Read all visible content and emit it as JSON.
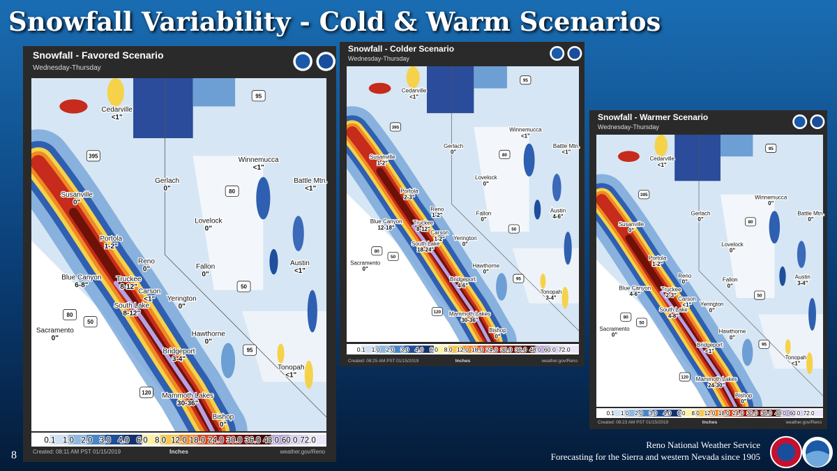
{
  "slide": {
    "title": "Snowfall Variability - Cold & Warm Scenarios",
    "number": "8",
    "footer_line1": "Reno National Weather Service",
    "footer_line2": "Forecasting for the Sierra and western Nevada since 1905"
  },
  "towns": [
    "Cedarville",
    "Susanville",
    "Gerlach",
    "Winnemucca",
    "Battle Mtn.",
    "Lovelock",
    "Portola",
    "Reno",
    "Fallon",
    "Austin",
    "Blue Canyon",
    "Truckee",
    "Carson",
    "South Lake",
    "Yerington",
    "Sacramento",
    "Hawthorne",
    "Bridgeport",
    "Tonopah",
    "Mammoth Lakes",
    "Bishop"
  ],
  "highway_shields": [
    "95",
    "395",
    "80",
    "50",
    "80",
    "50",
    "95",
    "120"
  ],
  "legend_labels": [
    "0.1",
    "1.0",
    "2.0",
    "3.0",
    "4.0",
    "6.0",
    "8.0",
    "12.0",
    "18.0",
    "24.0",
    "30.0",
    "36.0",
    "48.0",
    "60.0",
    "72.0"
  ],
  "legend_unit": "Inches",
  "source": "weather.gov/Reno",
  "panels": [
    {
      "title": "Snowfall - Favored Scenario",
      "subtitle": "Wednesday-Thursday",
      "created": "Created: 08:11 AM PST 01/15/2019",
      "amounts": [
        "<1\"",
        "0\"",
        "0\"",
        "<1\"",
        "<1\"",
        "0\"",
        "1-2\"",
        "0\"",
        "0\"",
        "<1\"",
        "6-8\"",
        "8-12\"",
        "<1\"",
        "8-12\"",
        "0\"",
        "0\"",
        "0\"",
        "3-4\"",
        "<1\"",
        "30-36\"",
        "0\""
      ]
    },
    {
      "title": "Snowfall - Colder Scenario",
      "subtitle": "Wednesday-Thursday",
      "created": "Created: 08:25 AM PST 01/15/2019",
      "amounts": [
        "<1\"",
        "1-2\"",
        "0\"",
        "<1\"",
        "<1\"",
        "0\"",
        "2-3\"",
        "1-2\"",
        "0\"",
        "4-6\"",
        "12-18\"",
        "8-12\"",
        "1-2\"",
        "18-24\"",
        "0\"",
        "0\"",
        "0\"",
        "4-6\"",
        "3-4\"",
        "30-36\"",
        "0\""
      ]
    },
    {
      "title": "Snowfall - Warmer Scenario",
      "subtitle": "Wednesday-Thursday",
      "created": "Created: 08:23 AM PST 01/15/2019",
      "amounts": [
        "<1\"",
        "0\"",
        "0\"",
        "0\"",
        "0\"",
        "0\"",
        "1-2\"",
        "0\"",
        "0\"",
        "3-4\"",
        "4-6\"",
        "2-3\"",
        "<1\"",
        "4-8\"",
        "0\"",
        "0\"",
        "0\"",
        "<1\"",
        "<1\"",
        "24-30\"",
        "0\""
      ]
    }
  ]
}
